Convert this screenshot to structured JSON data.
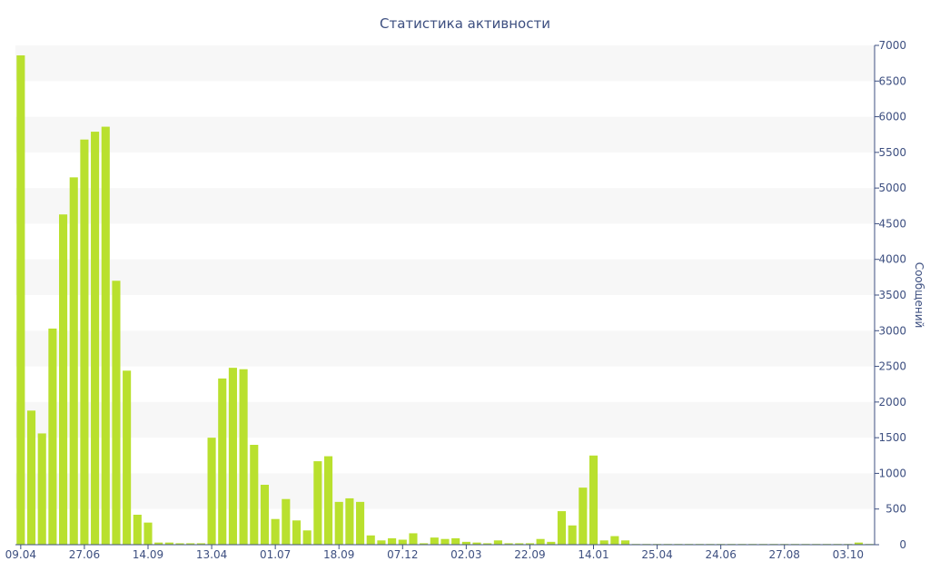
{
  "chart_data": {
    "type": "bar",
    "title": "Статистика активности",
    "xlabel": "",
    "ylabel": "Сообщений",
    "ylim": [
      0,
      7000
    ],
    "y_ticks": [
      0,
      500,
      1000,
      1500,
      2000,
      2500,
      3000,
      3500,
      4000,
      4500,
      5000,
      5500,
      6000,
      6500,
      7000
    ],
    "y_axis_position": "right",
    "grid": "alternating horizontal bands",
    "legend": "none",
    "bar_color": "#b9e02e",
    "x_tick_labels": [
      {
        "index": 0,
        "label": "09.04"
      },
      {
        "index": 6,
        "label": "27.06"
      },
      {
        "index": 12,
        "label": "14.09"
      },
      {
        "index": 18,
        "label": "13.04"
      },
      {
        "index": 24,
        "label": "01.07"
      },
      {
        "index": 30,
        "label": "18.09"
      },
      {
        "index": 36,
        "label": "07.12"
      },
      {
        "index": 42,
        "label": "02.03"
      },
      {
        "index": 48,
        "label": "22.09"
      },
      {
        "index": 54,
        "label": "14.01"
      },
      {
        "index": 60,
        "label": "25.04"
      },
      {
        "index": 66,
        "label": "24.06"
      },
      {
        "index": 72,
        "label": "27.08"
      },
      {
        "index": 78,
        "label": "03.10"
      }
    ],
    "values": [
      6860,
      1880,
      1560,
      3030,
      4630,
      5150,
      5680,
      5790,
      5860,
      3700,
      2440,
      420,
      310,
      30,
      30,
      20,
      20,
      20,
      1500,
      2330,
      2480,
      2460,
      1400,
      840,
      360,
      640,
      340,
      200,
      1170,
      1240,
      600,
      650,
      600,
      130,
      60,
      90,
      70,
      160,
      20,
      100,
      80,
      90,
      40,
      30,
      20,
      60,
      20,
      20,
      20,
      80,
      40,
      470,
      270,
      800,
      1250,
      60,
      120,
      60,
      10,
      10,
      10,
      10,
      10,
      10,
      10,
      10,
      10,
      10,
      10,
      10,
      10,
      10,
      10,
      10,
      10,
      10,
      10,
      10,
      10,
      30,
      10
    ]
  }
}
